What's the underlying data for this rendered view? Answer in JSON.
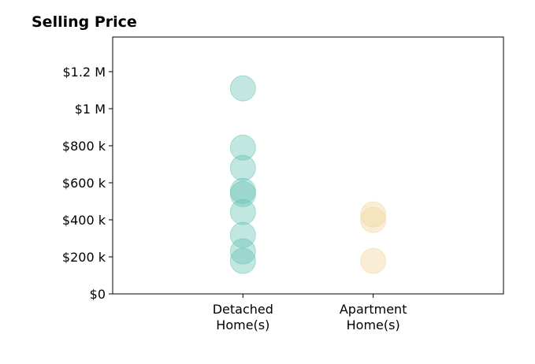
{
  "chart_data": {
    "type": "strip",
    "title": "Selling Price",
    "categories": [
      "Detached\nHome(s)",
      "Apartment\nHome(s)"
    ],
    "values": [
      [
        1110000,
        790000,
        680000,
        556000,
        539000,
        442000,
        318000,
        229000,
        178000
      ],
      [
        429000,
        399000,
        178000
      ]
    ],
    "colors": [
      "#66c2b4",
      "#f0d595"
    ],
    "ylim": [
      0,
      1387000
    ],
    "yticks": [
      {
        "value": 0,
        "label": "$0"
      },
      {
        "value": 200000,
        "label": "$200 k"
      },
      {
        "value": 400000,
        "label": "$400 k"
      },
      {
        "value": 600000,
        "label": "$600 k"
      },
      {
        "value": 800000,
        "label": "$800 k"
      },
      {
        "value": 1000000,
        "label": "$1 M"
      },
      {
        "value": 1200000,
        "label": "$1.2 M"
      }
    ],
    "grid": false
  }
}
